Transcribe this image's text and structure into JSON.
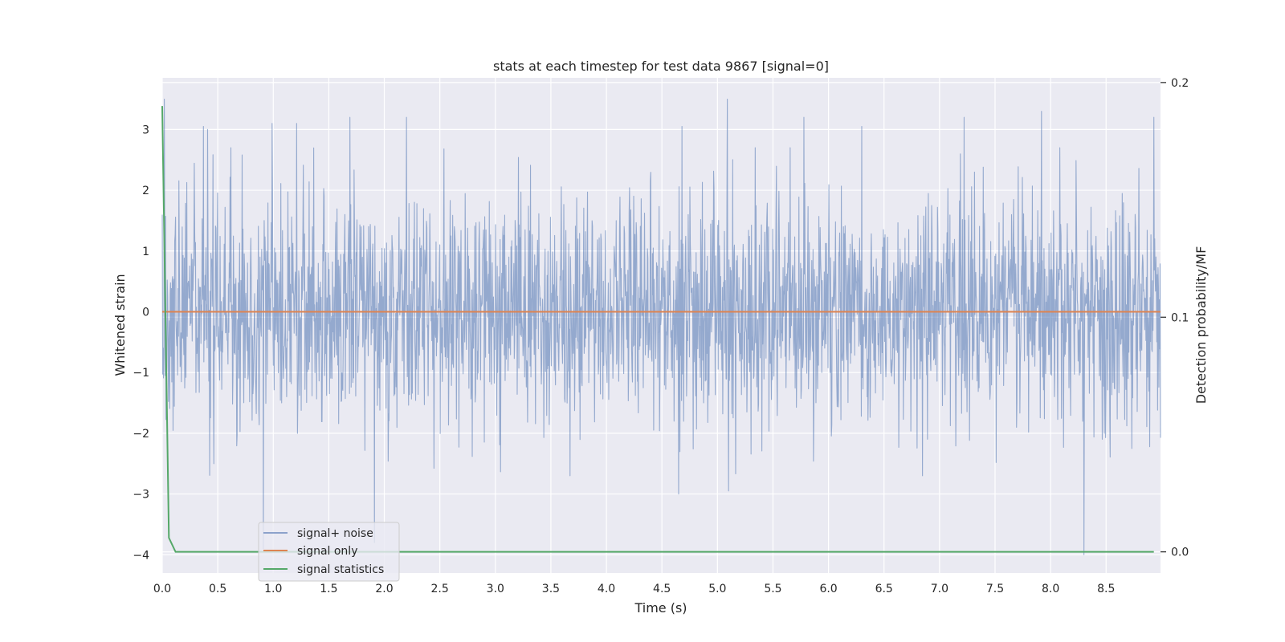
{
  "chart_data": {
    "type": "line",
    "title": "stats at each timestep for test data 9867 [signal=0]",
    "xlabel": "Time (s)",
    "ylabel": "Whitened strain",
    "y2label": "Detection probability/MF",
    "xlim": [
      0.0,
      8.99
    ],
    "ylim": [
      -4.3,
      3.85
    ],
    "y2lim": [
      -0.009,
      0.202
    ],
    "x_ticks": [
      "0.0",
      "0.5",
      "1.0",
      "1.5",
      "2.0",
      "2.5",
      "3.0",
      "3.5",
      "4.0",
      "4.5",
      "5.0",
      "5.5",
      "6.0",
      "6.5",
      "7.0",
      "7.5",
      "8.0",
      "8.5"
    ],
    "y_ticks": [
      "3",
      "2",
      "1",
      "0",
      "−1",
      "−2",
      "−3",
      "−4"
    ],
    "y2_ticks": [
      "0.2",
      "0.1",
      "0.0"
    ],
    "grid": true,
    "legend_position": "lower-left",
    "series": [
      {
        "name": "signal+ noise",
        "axis": "left",
        "color": "#4c72b0",
        "opacity": 0.55,
        "description": "whitened strain noise, roughly between -2 and 2 with spikes",
        "peaks": [
          {
            "x": 0.02,
            "y": 3.5
          },
          {
            "x": 0.37,
            "y": 3.05
          },
          {
            "x": 0.41,
            "y": 3.0
          },
          {
            "x": 0.99,
            "y": 3.1
          },
          {
            "x": 1.21,
            "y": 3.1
          },
          {
            "x": 1.69,
            "y": 3.2
          },
          {
            "x": 2.2,
            "y": 3.2
          },
          {
            "x": 4.68,
            "y": 3.05
          },
          {
            "x": 5.09,
            "y": 3.5
          },
          {
            "x": 5.78,
            "y": 3.2
          },
          {
            "x": 6.3,
            "y": 3.05
          },
          {
            "x": 7.22,
            "y": 3.2
          },
          {
            "x": 7.92,
            "y": 3.3
          },
          {
            "x": 8.93,
            "y": 3.2
          },
          {
            "x": 0.91,
            "y": -3.9
          },
          {
            "x": 1.91,
            "y": -3.8
          },
          {
            "x": 4.65,
            "y": -3.0
          },
          {
            "x": 5.1,
            "y": -2.95
          },
          {
            "x": 8.3,
            "y": -4.0
          }
        ]
      },
      {
        "name": "signal only",
        "axis": "left",
        "color": "#dd8452",
        "values_x": [
          0.0,
          8.99
        ],
        "values_y": [
          0.0,
          0.0
        ]
      },
      {
        "name": "signal statistics",
        "axis": "right",
        "color": "#55a868",
        "values_x": [
          0.0,
          0.06,
          0.12,
          8.1,
          8.3,
          8.93
        ],
        "values_y": [
          0.19,
          0.006,
          0.0,
          0.0,
          0.0,
          0.0
        ]
      }
    ]
  }
}
